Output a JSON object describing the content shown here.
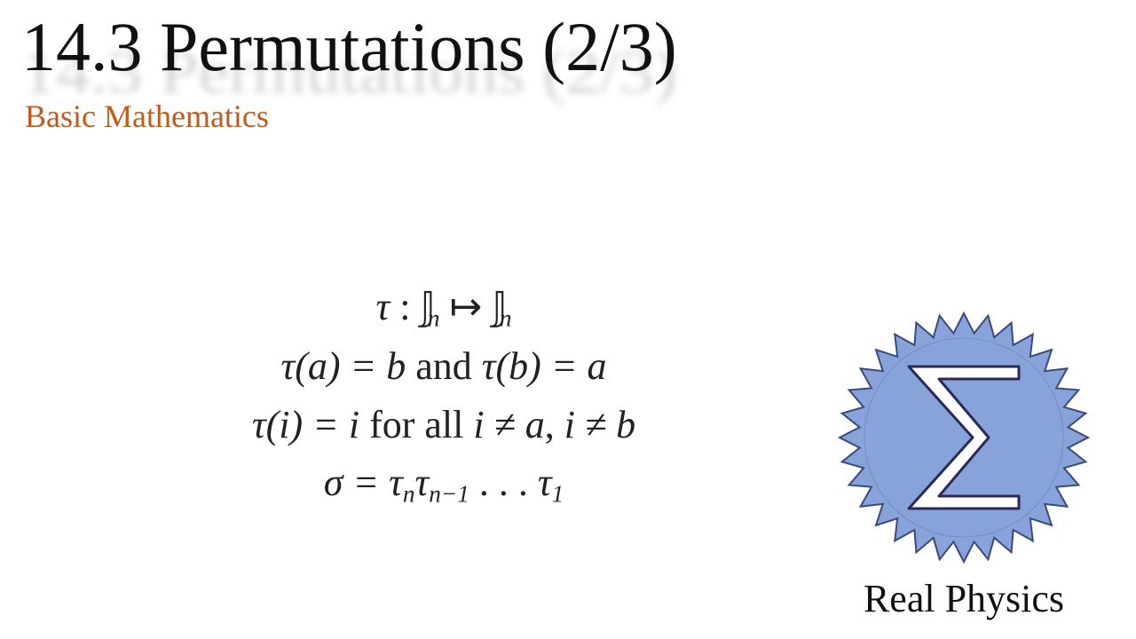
{
  "title": "14.3 Permutations (2/3)",
  "subtitle": "Basic Mathematics",
  "subtitle_color": "#c05a1a",
  "title_color": "#111111",
  "title_fontsize": 78,
  "subtitle_fontsize": 36,
  "background_color": "#ffffff",
  "math": {
    "fontsize": 44,
    "color": "#222222",
    "lines": {
      "l1_tau": "τ",
      "l1_colon": " : ",
      "l1_J": "𝕁",
      "l1_sub_n": "n",
      "l1_mapsto": " ↦ ",
      "l2": "τ(a) = b",
      "l2_and": " and ",
      "l2b": "τ(b) = a",
      "l3a": "τ(i) = i",
      "l3_for": " for all ",
      "l3b": "i ≠ a",
      "l3_comma": ", ",
      "l3c": "i ≠ b",
      "l4_sigma": "σ = τ",
      "l4_subn": "n",
      "l4_tau": "τ",
      "l4_subnm1": "n−1",
      "l4_dots": " . . . ",
      "l4_tau2": "τ",
      "l4_sub1": "1"
    }
  },
  "logo": {
    "label": "Real Physics",
    "label_fontsize": 44,
    "seal_fill": "#87a3d9",
    "seal_stroke": "#3a4a7a",
    "sigma_fill": "#ffffff",
    "sigma_stroke": "#2a2a5a",
    "seal_size": 300,
    "teeth": 32
  }
}
